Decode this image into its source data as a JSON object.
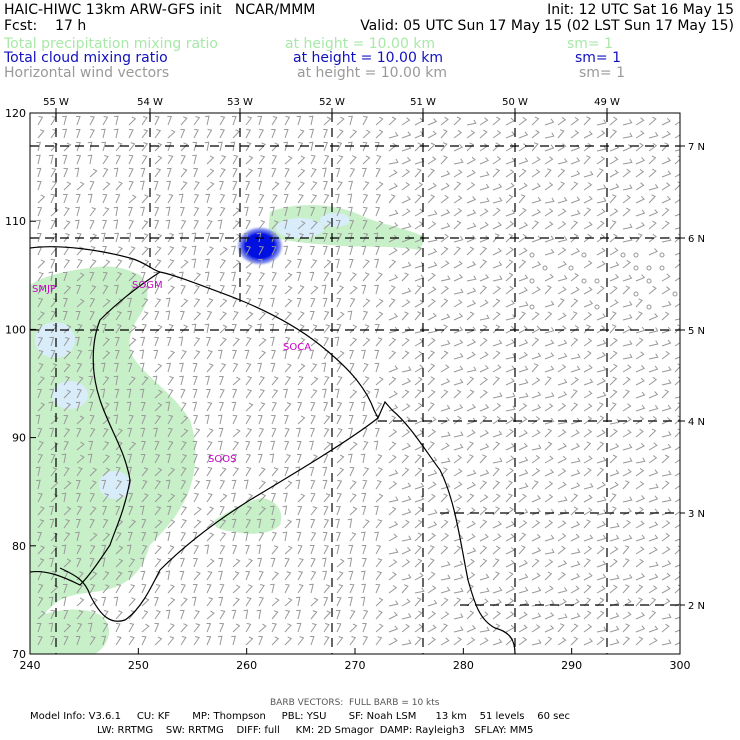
{
  "header": {
    "title": "HAIC-HIWC 13km ARW-GFS init   NCAR/MMM",
    "init": "Init: 12 UTC Sat 16 May 15",
    "fcst": "Fcst:    17 h",
    "valid": "Valid: 05 UTC Sun 17 May 15 (02 LST Sun 17 May 15)",
    "fields": [
      {
        "name": "Total precipitation mixing ratio",
        "height": "at height = 10.00 km",
        "sm": "sm= 1",
        "color": "#a8e8a8"
      },
      {
        "name": "Total cloud mixing ratio",
        "height": "at height = 10.00 km",
        "sm": "sm= 1",
        "color": "#1010c0"
      },
      {
        "name": "Horizontal wind vectors",
        "height": "at height = 10.00 km",
        "sm": "sm= 1",
        "color": "#999999"
      }
    ]
  },
  "axes": {
    "x_ticks": [
      "240",
      "250",
      "260",
      "270",
      "280",
      "290",
      "300"
    ],
    "y_ticks": [
      "70",
      "80",
      "90",
      "100",
      "110",
      "120"
    ],
    "lon_labels": [
      "55 W",
      "54 W",
      "53 W",
      "52 W",
      "51 W",
      "50 W",
      "49 W"
    ],
    "lat_labels": [
      "7 N",
      "6 N",
      "5 N",
      "4 N",
      "3 N",
      "2 N"
    ]
  },
  "stations": [
    "SMJP",
    "SOGM",
    "SOCA",
    "SOOS"
  ],
  "footer": {
    "barb_note": "BARB VECTORS:  FULL BARB = 10 kts",
    "line1": "Model Info: V3.6.1     CU: KF       MP: Thompson     PBL: YSU       SF: Noah LSM      13 km    51 levels    60 sec",
    "line2": "LW: RRTMG    SW: RRTMG    DIFF: full     KM: 2D Smagor  DAMP: Rayleigh3   SFLAY: MM5"
  },
  "colors": {
    "precip": "#c8f0c8",
    "cloud_light": "#d8ecfa",
    "cloud_core": "#0010e0",
    "station": "#cc00cc",
    "wind": "#999999"
  }
}
